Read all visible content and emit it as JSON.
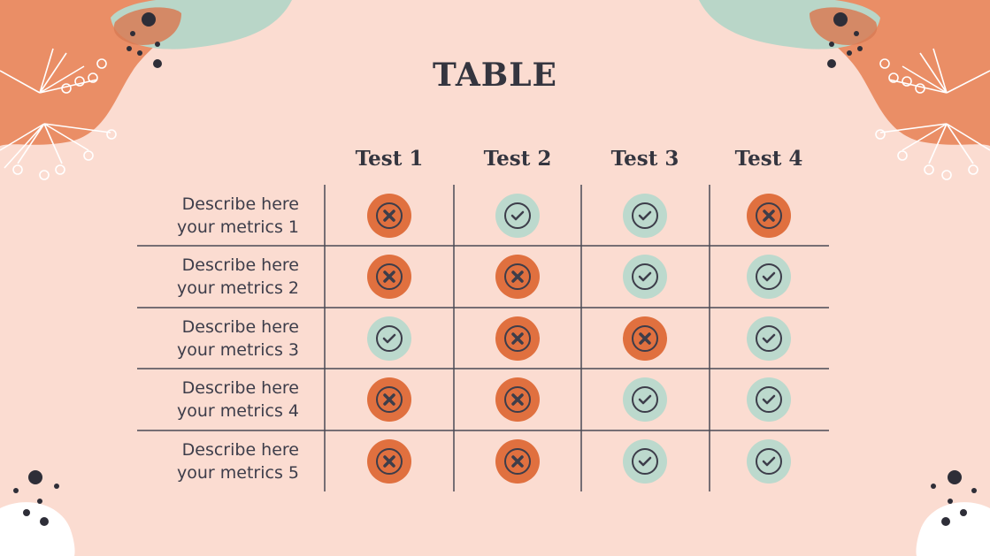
{
  "title": "TABLE",
  "table": {
    "columns": [
      "Test 1",
      "Test 2",
      "Test 3",
      "Test 4"
    ],
    "rows": [
      {
        "label": "Describe here your metrics 1",
        "results": [
          false,
          true,
          true,
          false
        ]
      },
      {
        "label": "Describe here your metrics 2",
        "results": [
          false,
          false,
          true,
          true
        ]
      },
      {
        "label": "Describe here your metrics 3",
        "results": [
          true,
          false,
          false,
          true
        ]
      },
      {
        "label": "Describe here your metrics 4",
        "results": [
          false,
          false,
          true,
          true
        ]
      },
      {
        "label": "Describe here your metrics 5",
        "results": [
          false,
          false,
          true,
          true
        ]
      }
    ]
  }
}
